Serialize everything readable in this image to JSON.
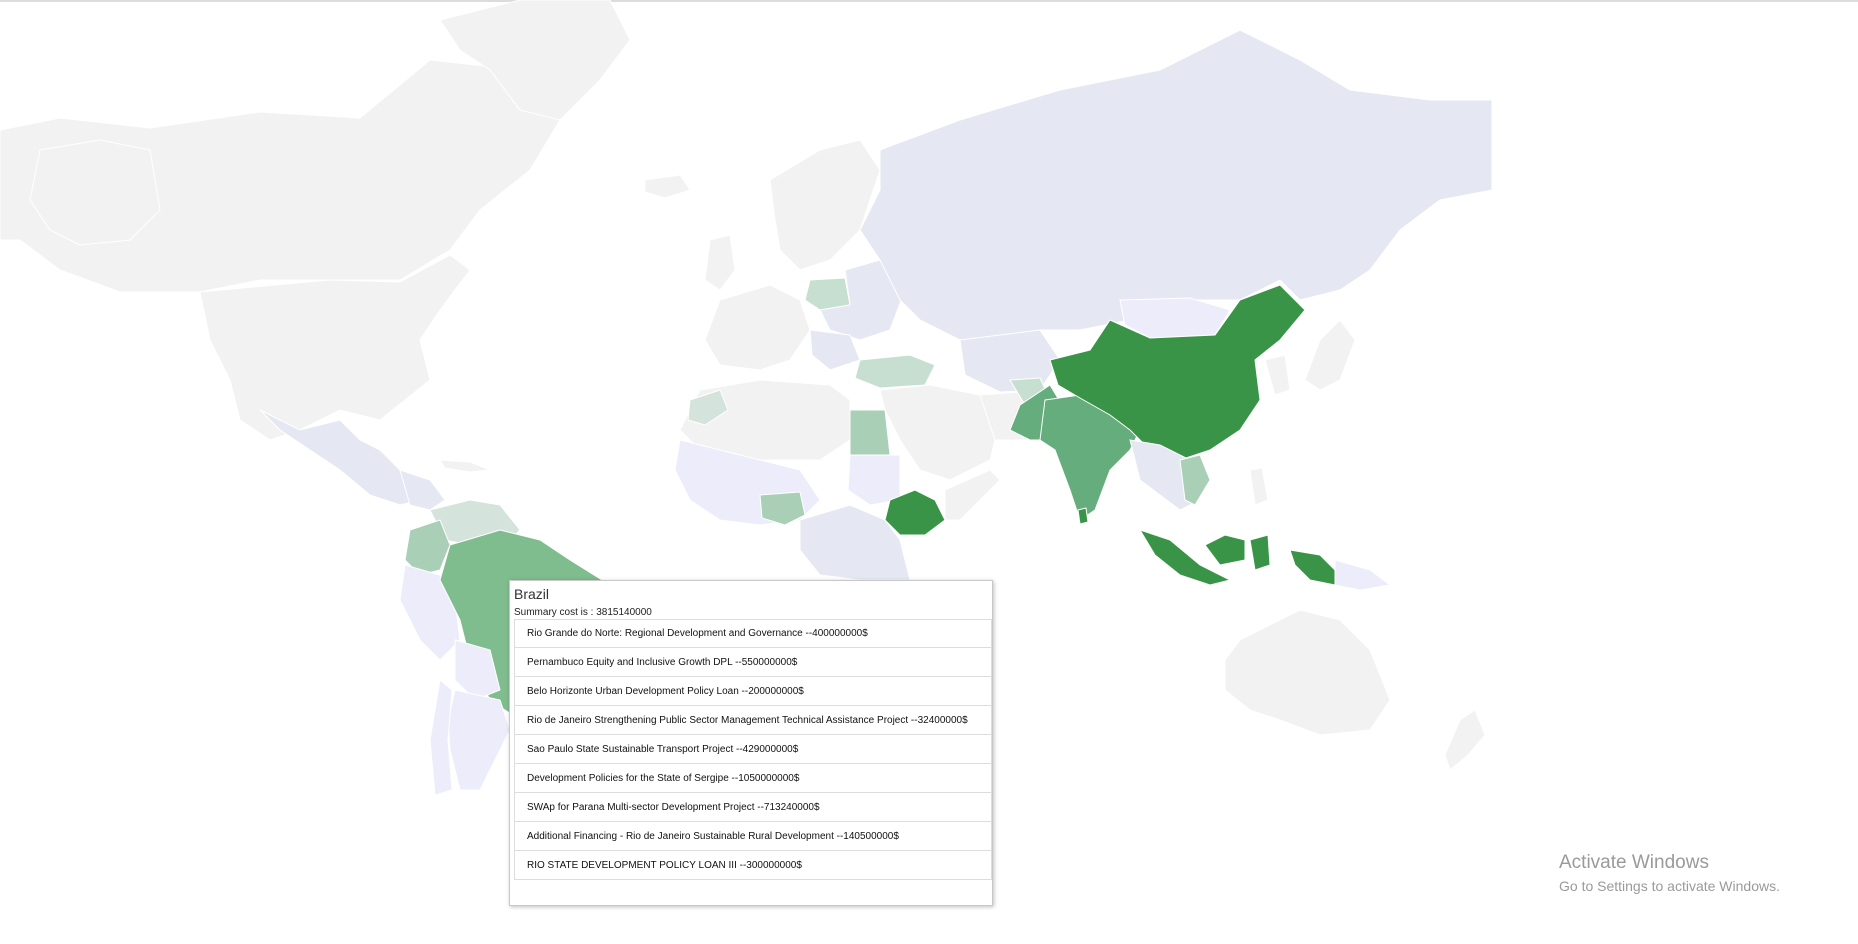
{
  "map": {
    "colors": {
      "no_data": "#f2f2f2",
      "low": "#e5e8f2",
      "lavender": "#ececfa",
      "light_green": "#c7dfd0",
      "mid_light_green": "#a9cfb6",
      "mid_green": "#7fbc8e",
      "green": "#65ad7c",
      "dark_green": "#3a9448",
      "border": "#ffffff"
    },
    "highlighted_country": "Brazil"
  },
  "tooltip": {
    "title": "Brazil",
    "summary": "Summary cost is : 3815140000",
    "projects": [
      "Rio Grande do Norte: Regional Development and Governance --400000000$",
      "Pernambuco Equity and Inclusive Growth DPL --550000000$",
      "Belo Horizonte Urban Development Policy Loan --200000000$",
      "Rio de Janeiro Strengthening Public Sector Management Technical Assistance Project --32400000$",
      "Sao Paulo State Sustainable Transport Project --429000000$",
      "Development Policies for the State of Sergipe --1050000000$",
      "SWAp for Parana Multi-sector Development Project --713240000$",
      "Additional Financing - Rio de Janeiro Sustainable Rural Development --140500000$",
      "RIO STATE DEVELOPMENT POLICY LOAN III --300000000$"
    ]
  },
  "watermark": {
    "line1": "Activate Windows",
    "line2": "Go to Settings to activate Windows."
  }
}
